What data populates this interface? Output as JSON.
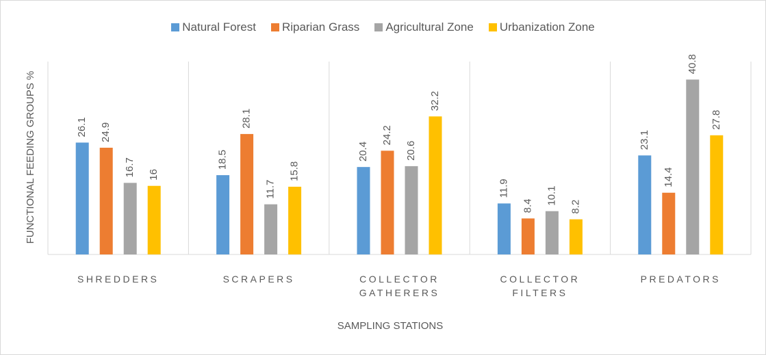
{
  "chart_data": {
    "type": "bar",
    "categories": [
      "SHREDDERS",
      "SCRAPERS",
      "COLLECTOR GATHERERS",
      "COLLECTOR FILTERS",
      "PREDATORS"
    ],
    "series": [
      {
        "name": "Natural Forest",
        "color": "#5b9bd5",
        "values": [
          26.1,
          18.5,
          20.4,
          11.9,
          23.1
        ]
      },
      {
        "name": "Riparian Grass",
        "color": "#ed7d31",
        "values": [
          24.9,
          28.1,
          24.2,
          8.4,
          14.4
        ]
      },
      {
        "name": "Agricultural Zone",
        "color": "#a5a5a5",
        "values": [
          16.7,
          11.7,
          20.6,
          10.1,
          40.8
        ]
      },
      {
        "name": "Urbanization Zone",
        "color": "#ffc000",
        "values": [
          16,
          15.8,
          32.2,
          8.2,
          27.8
        ]
      }
    ],
    "ylabel": "FUNCTIONAL FEEDING GROUPS %",
    "xlabel": "SAMPLING STATIONS",
    "ylim": [
      0,
      45
    ],
    "legend": "top"
  }
}
